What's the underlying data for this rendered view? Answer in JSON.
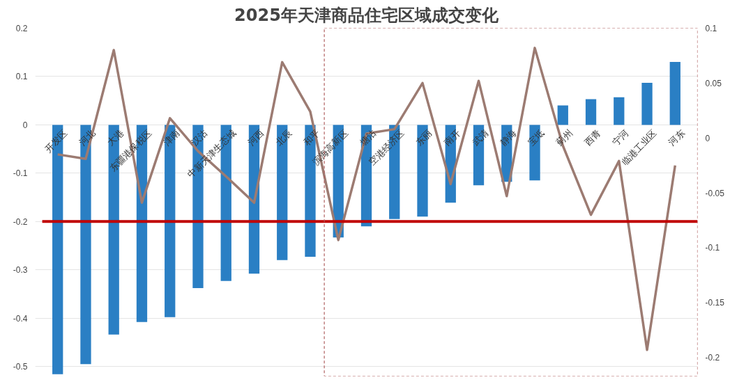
{
  "chart_data": {
    "type": "bar",
    "title": "2025年天津商品住宅区域成交变化",
    "categories": [
      "开发区",
      "河北",
      "大港",
      "东疆港保税区",
      "津南",
      "汉沽",
      "中新天津生态城",
      "河西",
      "北辰",
      "和平",
      "滨海高新区",
      "塘沽",
      "空港经济区",
      "东丽",
      "南开",
      "武清",
      "静海",
      "宝坻",
      "蓟州",
      "西青",
      "宁河",
      "临港工业区",
      "河东"
    ],
    "series": [
      {
        "color": "#2a7fc4",
        "values": [
          -0.516,
          -0.495,
          -0.434,
          -0.408,
          -0.398,
          -0.338,
          -0.323,
          -0.308,
          -0.28,
          -0.273,
          -0.233,
          -0.21,
          -0.195,
          -0.19,
          -0.161,
          -0.125,
          -0.118,
          -0.115,
          0.04,
          0.053,
          0.057,
          0.087,
          0.13
        ]
      },
      {
        "type": "line",
        "axis": "y2",
        "color": "#9c7b72",
        "values": [
          -0.015,
          -0.019,
          0.08,
          -0.059,
          0.018,
          -0.012,
          -0.035,
          -0.059,
          0.069,
          0.024,
          -0.093,
          0.004,
          0.008,
          0.05,
          -0.042,
          0.052,
          -0.053,
          0.082,
          -0.007,
          -0.07,
          -0.021,
          -0.193,
          -0.025
        ]
      }
    ],
    "ylim": [
      -0.52,
      0.2
    ],
    "yticks": [
      {
        "value": 0.2,
        "label": "0.2"
      },
      {
        "value": 0.1,
        "label": "0.1"
      },
      0,
      {
        "value": -0.1,
        "label": "-0.1"
      },
      {
        "value": -0.2,
        "label": "-0.2"
      },
      {
        "value": -0.3,
        "label": "-0.3"
      },
      {
        "value": -0.4,
        "label": "-0.4"
      },
      {
        "value": -0.5,
        "label": "-0.5"
      }
    ],
    "y2lim": [
      -0.217,
      0.1
    ],
    "y2ticks": [
      {
        "value": 0.1,
        "label": "0.1"
      },
      {
        "value": 0.05,
        "label": "0.05"
      },
      0,
      {
        "value": -0.05,
        "label": "-0.05"
      },
      {
        "value": -0.1,
        "label": "-0.1"
      },
      {
        "value": -0.15,
        "label": "-0.15"
      },
      {
        "value": -0.2,
        "label": "-0.2"
      }
    ],
    "ref_lines": [
      {
        "axis": "y",
        "value": -0.2,
        "color": "#c00000"
      }
    ],
    "grid": "y",
    "marker": "none",
    "line_style": "solid"
  }
}
